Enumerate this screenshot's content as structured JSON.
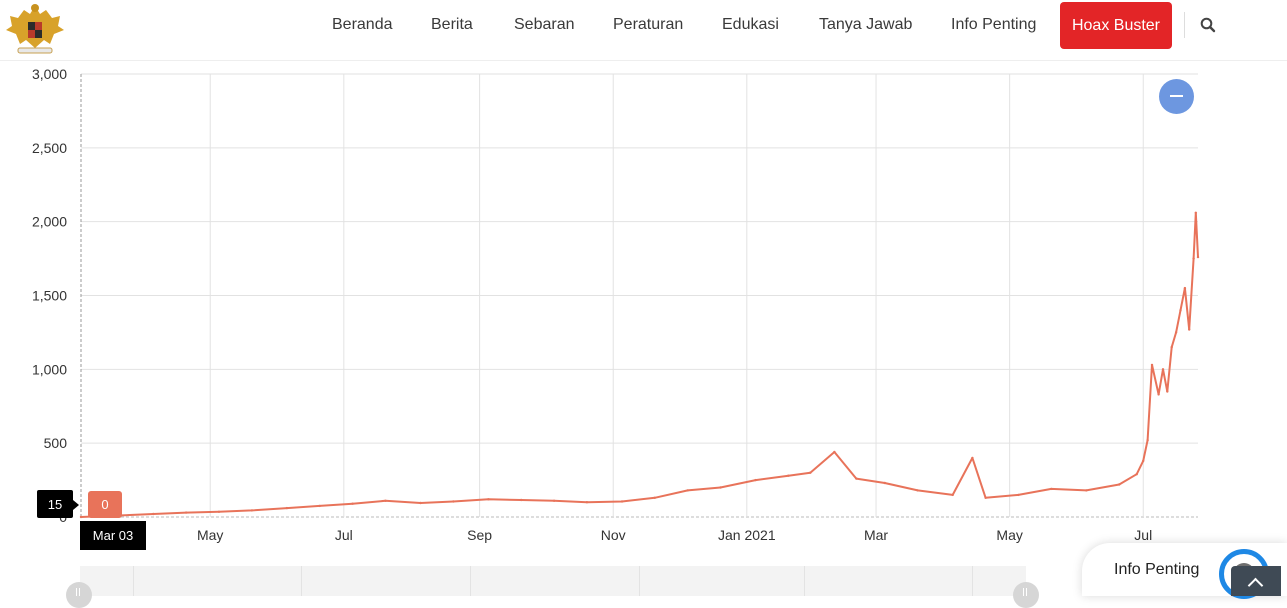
{
  "nav": {
    "items": [
      "Beranda",
      "Berita",
      "Sebaran",
      "Peraturan",
      "Edukasi",
      "Tanya Jawab",
      "Info Penting"
    ],
    "hoax_label": "Hoax Buster",
    "hoax_color": "#e32527"
  },
  "logo": {
    "icon": "garuda-emblem-icon"
  },
  "tooltip": {
    "value": "15",
    "series_value": "0",
    "date": "Mar 03"
  },
  "widget": {
    "label": "Info Penting",
    "ring_color": "#1e88e5"
  },
  "chart_data": {
    "type": "line",
    "title": "",
    "xlabel": "",
    "ylabel": "",
    "ylim": [
      0,
      3000
    ],
    "xlim": [
      "2020-03-03",
      "2021-07-26"
    ],
    "yticks": [
      0,
      500,
      1000,
      1500,
      2000,
      2500,
      3000
    ],
    "ytick_labels": [
      "0",
      "500",
      "1,000",
      "1,500",
      "2,000",
      "2,500",
      "3,000"
    ],
    "xticks": [
      {
        "date": "2020-05-01",
        "label": "May"
      },
      {
        "date": "2020-07-01",
        "label": "Jul"
      },
      {
        "date": "2020-09-01",
        "label": "Sep"
      },
      {
        "date": "2020-11-01",
        "label": "Nov"
      },
      {
        "date": "2021-01-01",
        "label": "Jan 2021"
      },
      {
        "date": "2021-03-01",
        "label": "Mar"
      },
      {
        "date": "2021-05-01",
        "label": "May"
      },
      {
        "date": "2021-07-01",
        "label": "Jul"
      }
    ],
    "grid": true,
    "line_color": "#e8735a",
    "series": [
      {
        "x": [
          "2020-03-03",
          "2020-03-20",
          "2020-04-05",
          "2020-04-20",
          "2020-05-05",
          "2020-05-20",
          "2020-06-05",
          "2020-06-20",
          "2020-07-05",
          "2020-07-20",
          "2020-08-05",
          "2020-08-20",
          "2020-09-05",
          "2020-09-20",
          "2020-10-05",
          "2020-10-20",
          "2020-11-05",
          "2020-11-20",
          "2020-12-05",
          "2020-12-20",
          "2021-01-05",
          "2021-01-20",
          "2021-01-30",
          "2021-02-10",
          "2021-02-20",
          "2021-03-05",
          "2021-03-20",
          "2021-04-05",
          "2021-04-14",
          "2021-04-20",
          "2021-05-05",
          "2021-05-20",
          "2021-06-05",
          "2021-06-20",
          "2021-06-28",
          "2021-07-01",
          "2021-07-03",
          "2021-07-05",
          "2021-07-08",
          "2021-07-10",
          "2021-07-12",
          "2021-07-14",
          "2021-07-16",
          "2021-07-18",
          "2021-07-20",
          "2021-07-22",
          "2021-07-24",
          "2021-07-25",
          "2021-07-26"
        ],
        "y": [
          0,
          10,
          20,
          30,
          35,
          45,
          60,
          75,
          90,
          110,
          95,
          105,
          120,
          115,
          110,
          100,
          105,
          130,
          180,
          200,
          250,
          280,
          300,
          440,
          260,
          230,
          180,
          150,
          400,
          130,
          150,
          190,
          180,
          220,
          290,
          380,
          520,
          1030,
          830,
          1000,
          850,
          1150,
          1250,
          1400,
          1550,
          1270,
          1750,
          2060,
          1760
        ]
      }
    ]
  }
}
